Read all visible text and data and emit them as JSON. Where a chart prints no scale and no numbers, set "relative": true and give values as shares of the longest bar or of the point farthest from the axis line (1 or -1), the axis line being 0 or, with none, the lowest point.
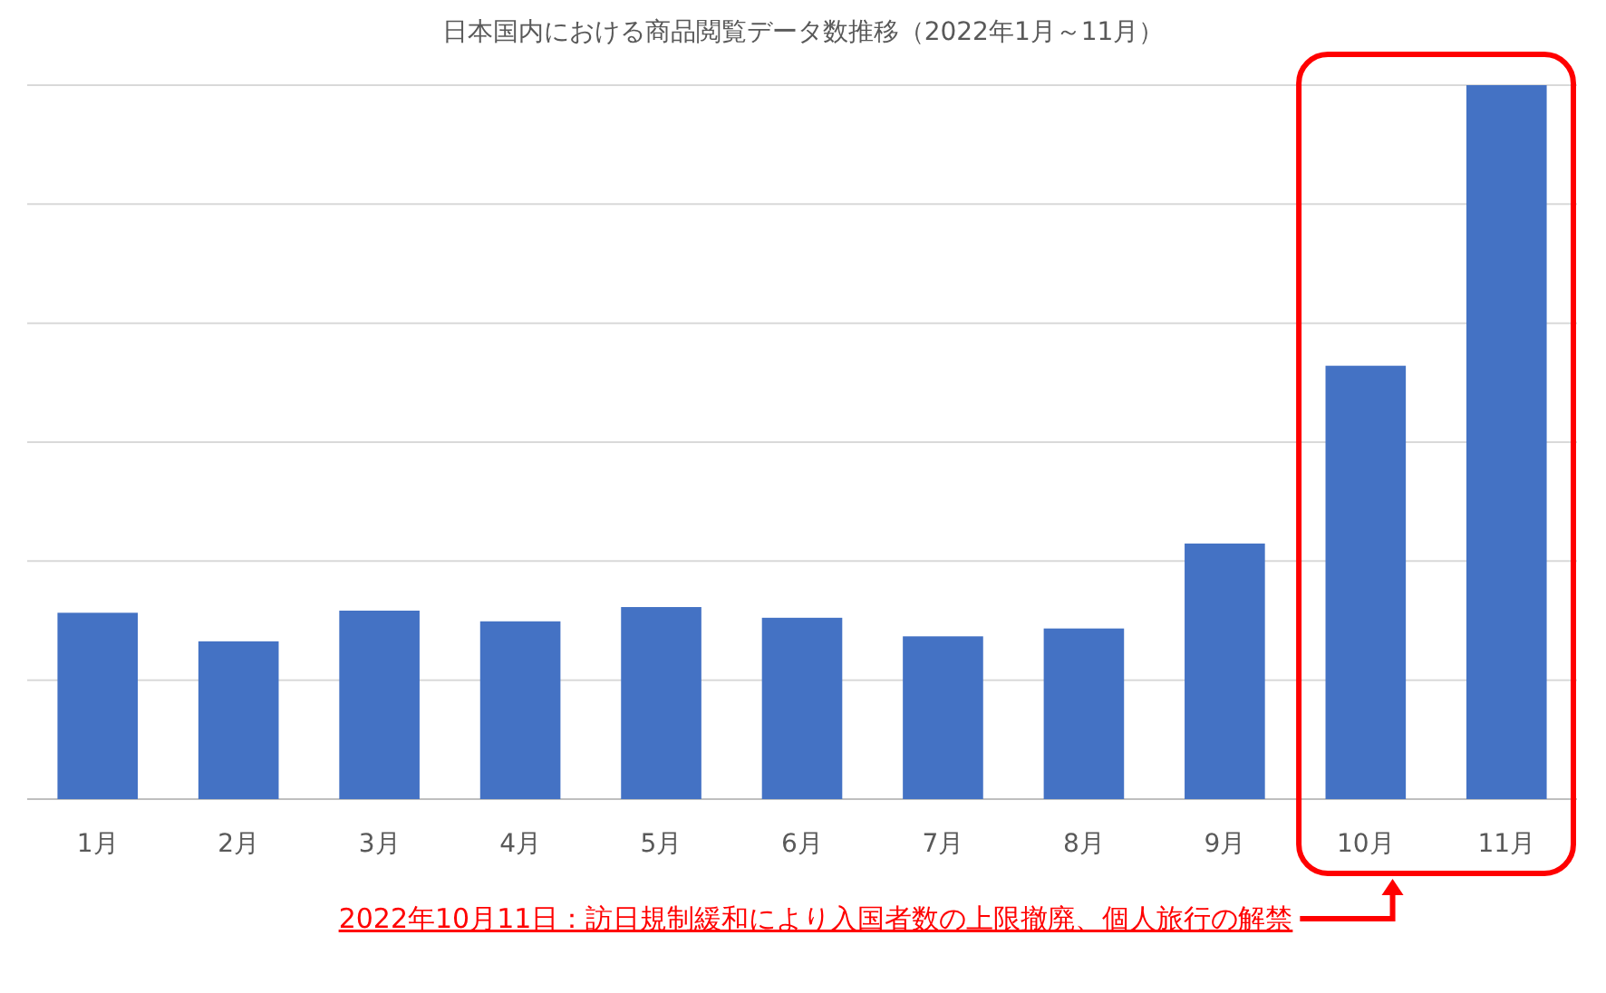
{
  "chart_data": {
    "type": "bar",
    "title": "日本国内における商品閲覧データ数推移（2022年1月～11月）",
    "categories": [
      "1月",
      "2月",
      "3月",
      "4月",
      "5月",
      "6月",
      "7月",
      "8月",
      "9月",
      "10月",
      "11月"
    ],
    "values": [
      0.261,
      0.221,
      0.264,
      0.249,
      0.269,
      0.254,
      0.228,
      0.239,
      0.358,
      0.607,
      1
    ],
    "color": "#4472c4",
    "relative": true,
    "grid": "y",
    "annotations": [
      "2022年10月11日：訪日規制緩和により入国者数の上限撤廃、個人旅行の解禁"
    ]
  }
}
